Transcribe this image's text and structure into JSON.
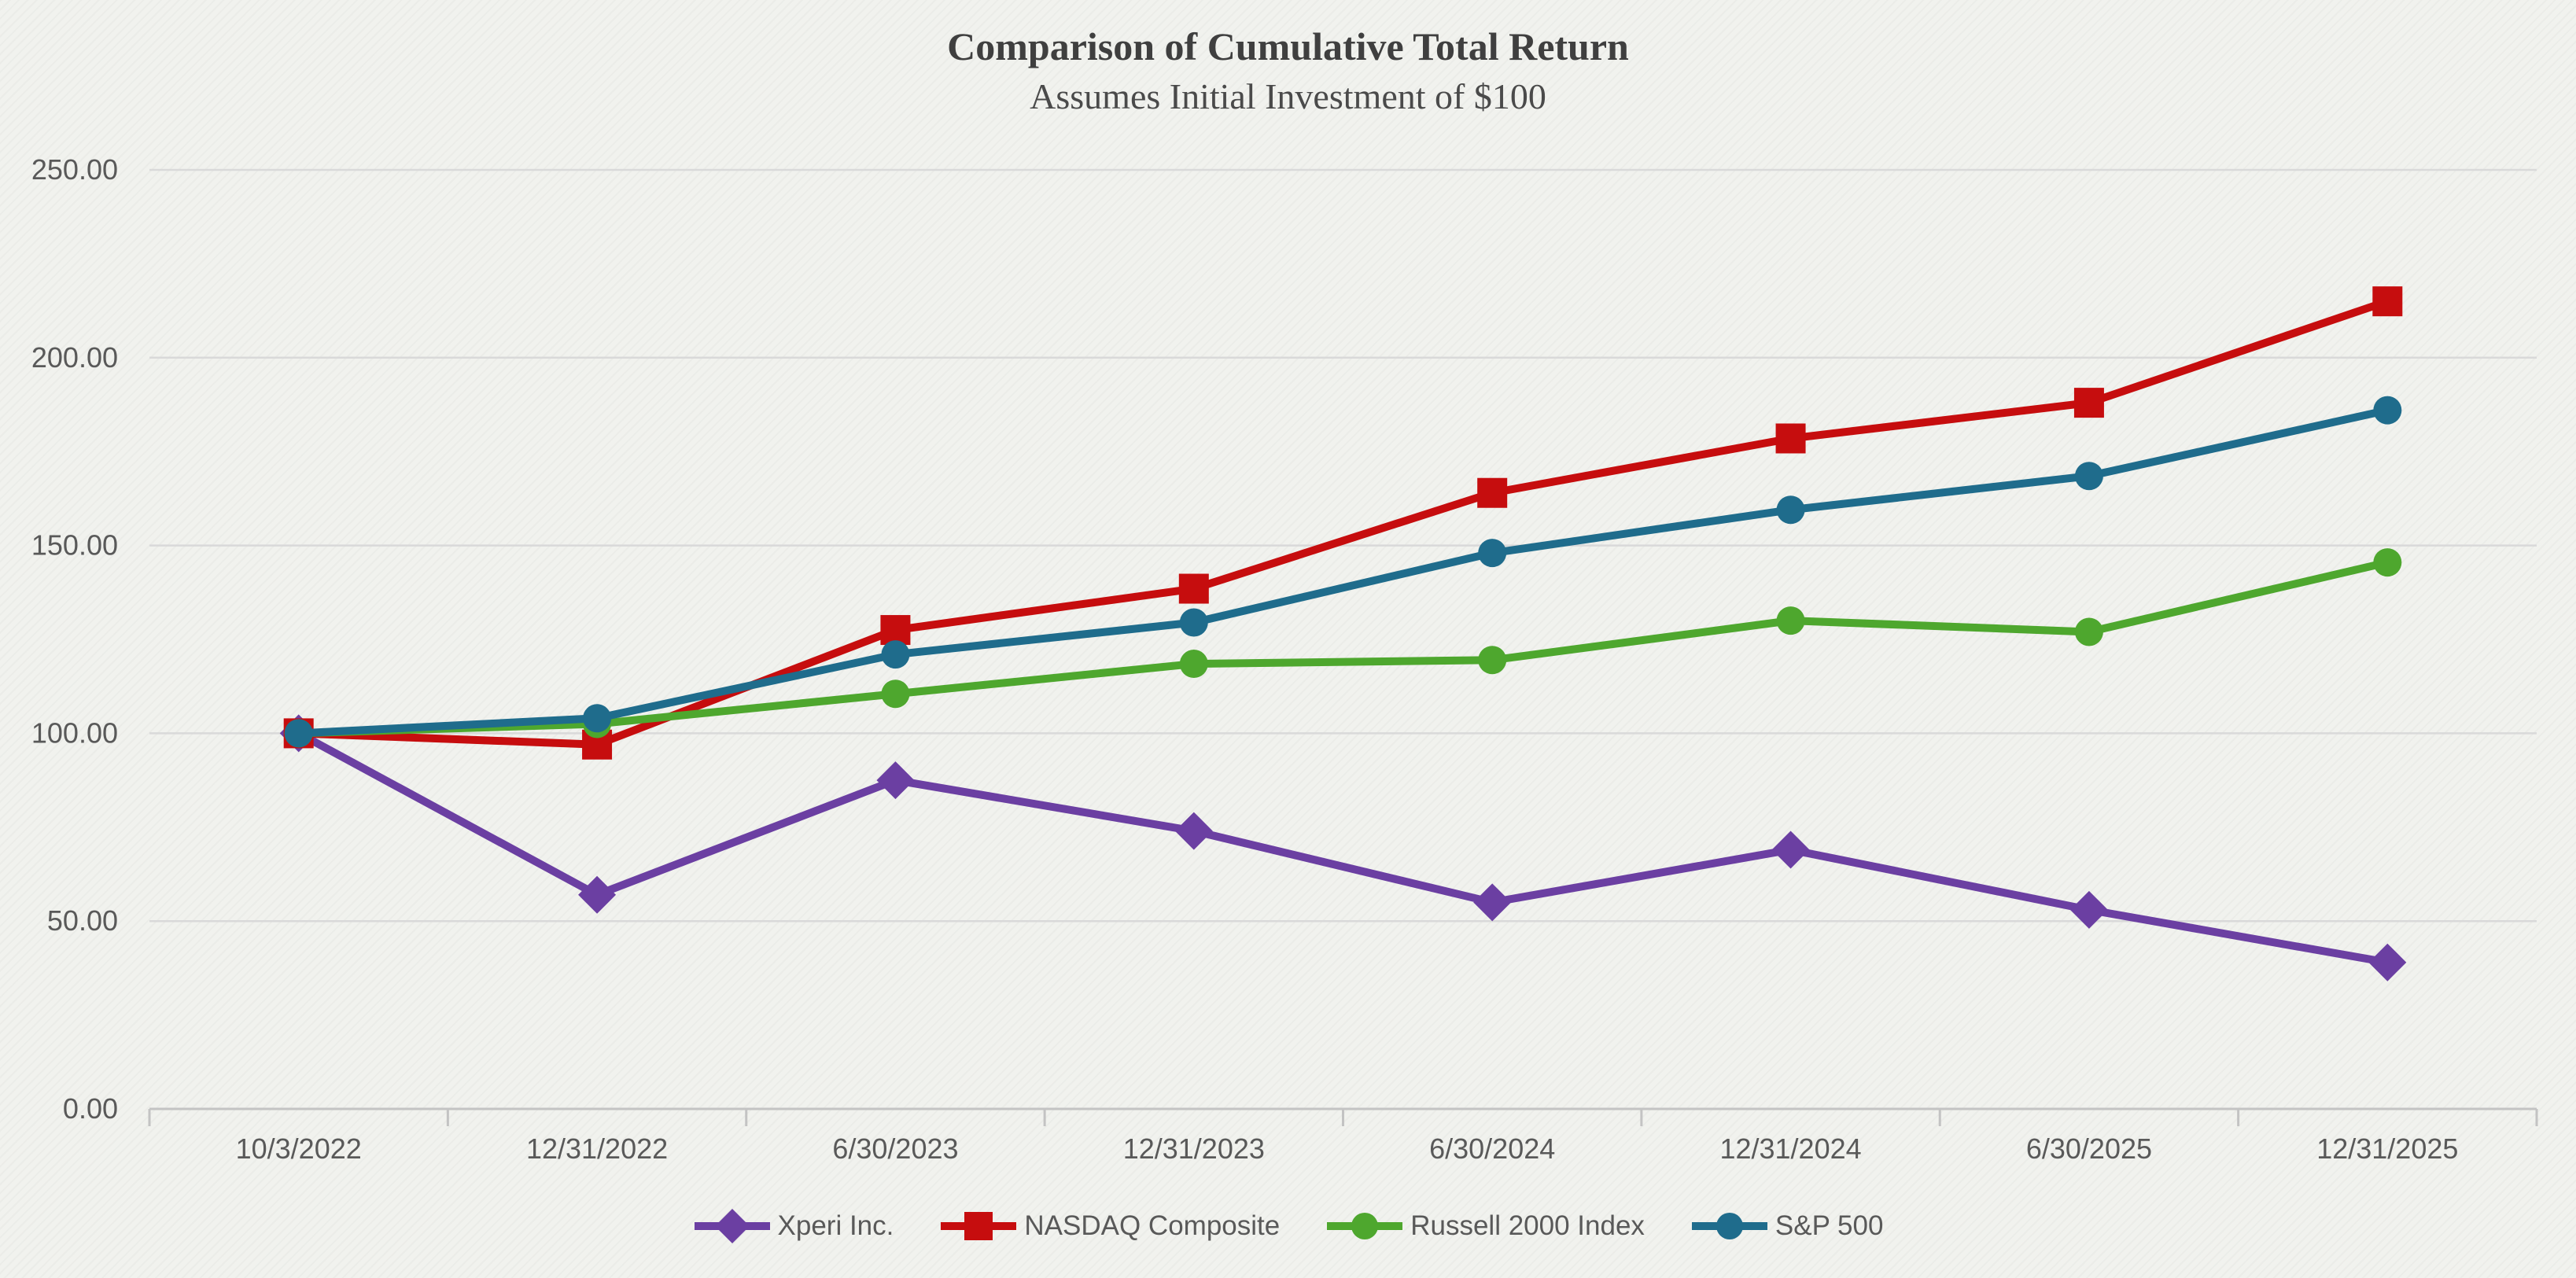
{
  "title": "Comparison of Cumulative Total Return",
  "subtitle": "Assumes Initial Investment of $100",
  "chart_data": {
    "type": "line",
    "categories": [
      "10/3/2022",
      "12/31/2022",
      "6/30/2023",
      "12/31/2023",
      "6/30/2024",
      "12/31/2024",
      "6/30/2025",
      "12/31/2025"
    ],
    "series": [
      {
        "name": "Xperi Inc.",
        "marker": "diamond",
        "color": "#6b3fa2",
        "values": [
          100,
          57,
          87.5,
          74,
          55,
          69,
          53,
          39
        ]
      },
      {
        "name": "NASDAQ Composite",
        "marker": "square",
        "color": "#c60d0e",
        "values": [
          100,
          97,
          127.5,
          138.5,
          164,
          178.5,
          188,
          215
        ]
      },
      {
        "name": "Russell 2000 Index",
        "marker": "circle",
        "color": "#4ea72e",
        "values": [
          100,
          102.5,
          110.5,
          118.5,
          119.5,
          130,
          127,
          145.5
        ]
      },
      {
        "name": "S&P 500",
        "marker": "circle",
        "color": "#1f6c8c",
        "values": [
          100,
          104,
          121,
          129.5,
          148,
          159.5,
          168.5,
          186
        ]
      }
    ],
    "y_axis": {
      "ticks": [
        {
          "label": "250.00",
          "value": 250
        },
        {
          "label": "200.00",
          "value": 200
        },
        {
          "label": "150.00",
          "value": 150
        },
        {
          "label": "100.00",
          "value": 100
        },
        {
          "label": "50.00",
          "value": 50
        },
        {
          "label": "0.00",
          "value": 0
        }
      ]
    },
    "ylim": [
      0,
      250
    ],
    "grid": true,
    "legend_position": "bottom"
  },
  "colors": {
    "gridline": "#d9d9d9",
    "axis_line": "#c3c3c3",
    "tick_text": "#595959",
    "title_text": "#3f3f3f"
  }
}
